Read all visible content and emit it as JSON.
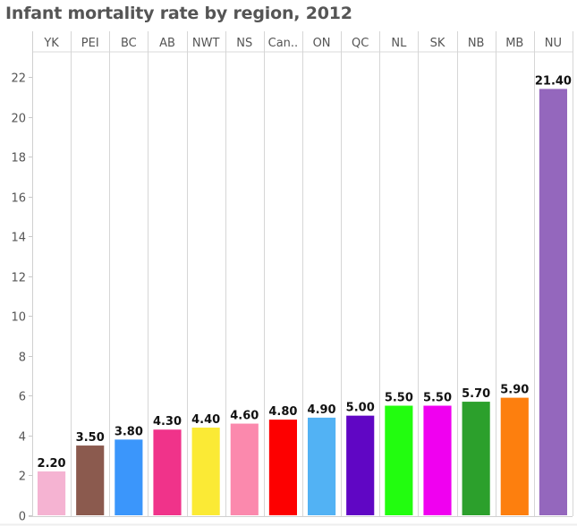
{
  "chart_data": {
    "type": "bar",
    "title": "Infant mortality rate by region, 2012",
    "xlabel": "",
    "ylabel": "",
    "categories": [
      "YK",
      "PEI",
      "BC",
      "AB",
      "NWT",
      "NS",
      "Can..",
      "ON",
      "QC",
      "NL",
      "SK",
      "NB",
      "MB",
      "NU"
    ],
    "values": [
      2.2,
      3.5,
      3.8,
      4.3,
      4.4,
      4.6,
      4.8,
      4.9,
      5.0,
      5.5,
      5.5,
      5.7,
      5.9,
      21.4
    ],
    "value_labels": [
      "2.20",
      "3.50",
      "3.80",
      "4.30",
      "4.40",
      "4.60",
      "4.80",
      "4.90",
      "5.00",
      "5.50",
      "5.50",
      "5.70",
      "5.90",
      "21.40"
    ],
    "colors": [
      "#f5b3d2",
      "#8b5a4e",
      "#3b96fb",
      "#f0338a",
      "#fbea35",
      "#fb89ad",
      "#fd0000",
      "#52b2f4",
      "#6006c4",
      "#22fd0f",
      "#f000f0",
      "#2ca02c",
      "#fd7f0e",
      "#9467bd"
    ],
    "yticks": [
      0,
      2,
      4,
      6,
      8,
      10,
      12,
      14,
      16,
      18,
      20,
      22
    ],
    "ylim": [
      0,
      23
    ],
    "grid": "vertical-column-dividers",
    "legend": "none",
    "category_axis_position": "top"
  }
}
